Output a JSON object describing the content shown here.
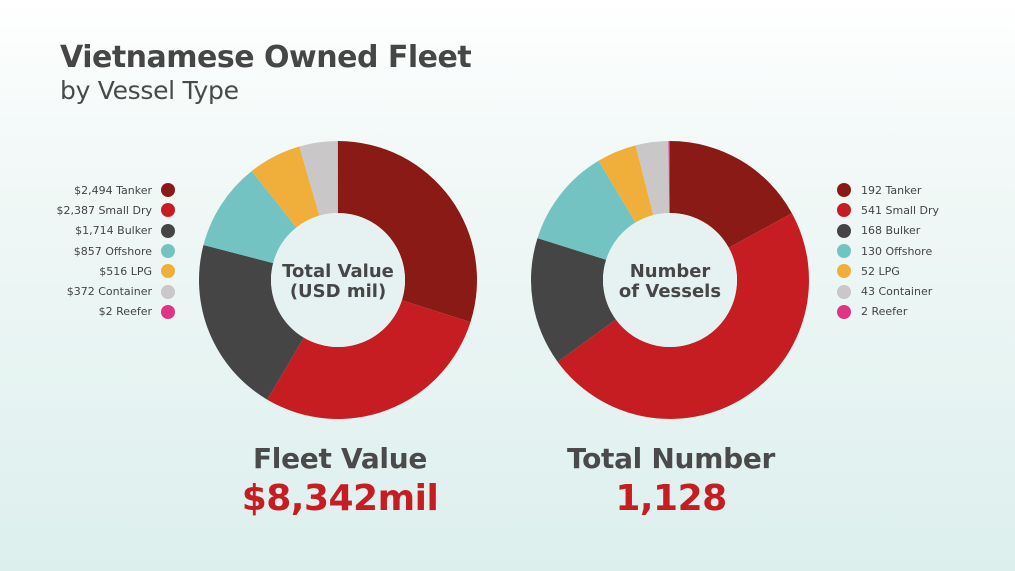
{
  "header": {
    "title": "Vietnamese Owned Fleet",
    "subtitle": "by Vessel Type"
  },
  "colors": {
    "Tanker": "#8a1a16",
    "Small Dry": "#c61d22",
    "Bulker": "#454545",
    "Offshore": "#74c3c3",
    "LPG": "#f0ae3a",
    "Container": "#c9c7c8",
    "Reefer": "#e03584"
  },
  "chart_data": [
    {
      "type": "pie",
      "donut": true,
      "center_label": [
        "Total Value",
        "(USD mil)"
      ],
      "categories": [
        "Tanker",
        "Small Dry",
        "Bulker",
        "Offshore",
        "LPG",
        "Container",
        "Reefer"
      ],
      "values": [
        2494,
        2387,
        1714,
        857,
        516,
        372,
        2
      ],
      "legend": [
        "$2,494 Tanker",
        "$2,387 Small Dry",
        "$1,714 Bulker",
        "$857 Offshore",
        "$516 LPG",
        "$372 Container",
        "$2 Reefer"
      ],
      "legend_position": "left",
      "summary_title": "Fleet Value",
      "summary_value": "$8,342mil"
    },
    {
      "type": "pie",
      "donut": true,
      "center_label": [
        "Number",
        "of Vessels"
      ],
      "categories": [
        "Tanker",
        "Small Dry",
        "Bulker",
        "Offshore",
        "LPG",
        "Container",
        "Reefer"
      ],
      "values": [
        192,
        541,
        168,
        130,
        52,
        43,
        2
      ],
      "legend": [
        "192 Tanker",
        "541 Small Dry",
        "168 Bulker",
        "130 Offshore",
        "52 LPG",
        "43 Container",
        "2 Reefer"
      ],
      "legend_position": "right",
      "summary_title": "Total Number",
      "summary_value": "1,128"
    }
  ]
}
